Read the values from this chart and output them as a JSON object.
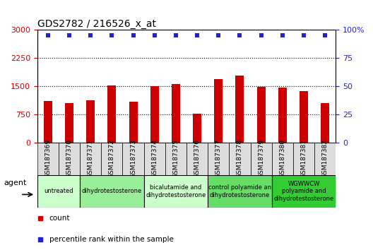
{
  "title": "GDS2782 / 216526_x_at",
  "samples": [
    "GSM187369",
    "GSM187370",
    "GSM187371",
    "GSM187372",
    "GSM187373",
    "GSM187374",
    "GSM187375",
    "GSM187376",
    "GSM187377",
    "GSM187378",
    "GSM187379",
    "GSM187380",
    "GSM187381",
    "GSM187382"
  ],
  "counts": [
    1100,
    1050,
    1120,
    1520,
    1080,
    1500,
    1550,
    760,
    1700,
    1780,
    1480,
    1470,
    1370,
    1050
  ],
  "percentiles": [
    100,
    100,
    100,
    100,
    100,
    100,
    100,
    100,
    100,
    100,
    100,
    100,
    100,
    100
  ],
  "bar_color": "#cc0000",
  "percentile_color": "#2222cc",
  "ylim_left": [
    0,
    3000
  ],
  "ylim_right": [
    0,
    100
  ],
  "yticks_left": [
    0,
    750,
    1500,
    2250,
    3000
  ],
  "yticks_right": [
    0,
    25,
    50,
    75,
    100
  ],
  "groups": [
    {
      "label": "untreated",
      "start": 0,
      "end": 2,
      "color": "#ccffcc",
      "spans": [
        0,
        1
      ]
    },
    {
      "label": "dihydrotestosterone",
      "start": 2,
      "end": 5,
      "color": "#99ee99",
      "spans": [
        2,
        3,
        4
      ]
    },
    {
      "label": "bicalutamide and\ndihydrotestosterone",
      "start": 5,
      "end": 8,
      "color": "#ccffcc",
      "spans": [
        5,
        6,
        7
      ]
    },
    {
      "label": "control polyamide an\ndihydrotestosterone",
      "start": 8,
      "end": 11,
      "color": "#66dd66",
      "spans": [
        8,
        9,
        10
      ]
    },
    {
      "label": "WGWWCW\npolyamide and\ndihydrotestosterone",
      "start": 11,
      "end": 14,
      "color": "#33cc33",
      "spans": [
        11,
        12,
        13
      ]
    }
  ],
  "legend_items": [
    {
      "label": "count",
      "color": "#cc0000"
    },
    {
      "label": "percentile rank within the sample",
      "color": "#2222cc"
    }
  ],
  "agent_label": "agent",
  "tick_label_color_left": "#cc0000",
  "tick_label_color_right": "#2222cc",
  "sample_box_color": "#dddddd",
  "chart_bg": "#ffffff",
  "title_fontsize": 10,
  "bar_width": 0.4
}
